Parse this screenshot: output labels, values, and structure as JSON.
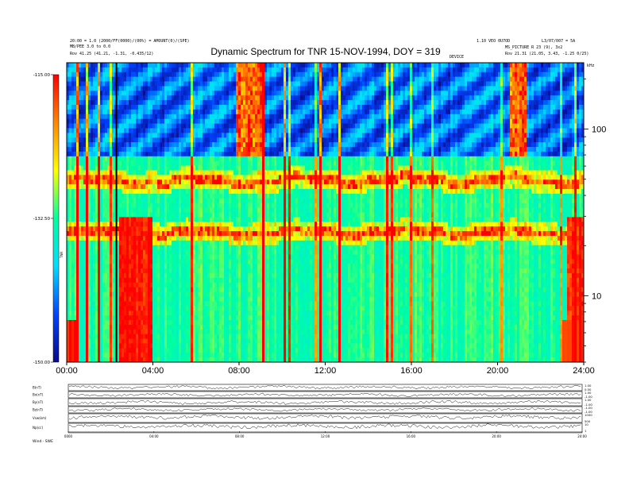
{
  "header": {
    "left_line1": "20:00 = 1.0 (2000/FF(0000)/(00%) = AMOUNT(0)/(SPE)",
    "left_line2": "MB/PEE 3.0 to 0.0",
    "left_line3": "Rov    41.25 (41.21, -1.31, -0.435/12)",
    "right_line1": "1.10 VEO 0U7OD",
    "right_line2": "L3/07/007 = 5A",
    "right_line3": "MS_PICTURE R 23 (9), 3x2",
    "right_line4": "Rov    21.31 (21.05, 3.43, -1.25 0/25)",
    "center_small": "DEVICE"
  },
  "chart_data": [
    {
      "type": "heatmap",
      "title": "Dynamic Spectrum for TNR 15-NOV-1994, DOY = 319",
      "x_ticks": [
        "00:00",
        "04:00",
        "08:00",
        "12:00",
        "16:00",
        "20:00",
        "24:00"
      ],
      "x_range_hours": [
        0,
        24
      ],
      "y_scale": "log",
      "y_range_khz": [
        4,
        250
      ],
      "y_ticks": [
        "10",
        "100"
      ],
      "y_unit": "kHz",
      "colorbar": {
        "ticks": [
          "-115.00",
          "-132.50",
          "-150.00"
        ],
        "range": [
          -150,
          -115
        ],
        "label": "TNR",
        "colors": [
          "#0a0a8c",
          "#0044ff",
          "#00ddff",
          "#00ffa0",
          "#ffff00",
          "#ff8800",
          "#ff0000"
        ]
      },
      "features": {
        "plasma_line_upper_khz": 49,
        "plasma_line_lower_khz": 24,
        "low_freq_burst_hours": [
          2.4,
          4.0
        ]
      }
    },
    {
      "type": "line",
      "panel": "time series",
      "x_ticks": [
        "0000",
        "04:00",
        "08:00",
        "12:00",
        "16:00",
        "20:00",
        "24:00"
      ],
      "series": [
        {
          "name": "B(nT)",
          "right_ticks": [
            "1.00",
            "0.50"
          ]
        },
        {
          "name": "Bx(nT)",
          "right_ticks": [
            "1.00",
            "-1.00"
          ]
        },
        {
          "name": "By(nT)",
          "right_ticks": [
            "1.00",
            "-1.00"
          ]
        },
        {
          "name": "Bz(nT)",
          "right_ticks": [
            "-1.00",
            "-1.00"
          ]
        },
        {
          "name": "Vsw(km)",
          "right_ticks": [
            "1000",
            "500"
          ]
        },
        {
          "name": "Np(cc)",
          "right_ticks": [
            "10",
            "1"
          ]
        }
      ],
      "footer_label": "Wind - SWE"
    }
  ]
}
